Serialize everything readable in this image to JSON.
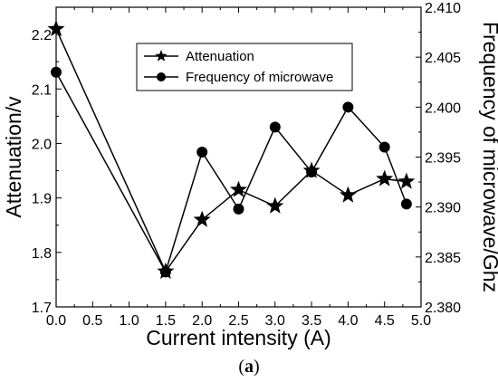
{
  "chart_data": {
    "type": "line",
    "xlabel": "Current intensity (A)",
    "ylabel_left": "Attenuation/v",
    "ylabel_right": "Frequency of microwave/Ghz",
    "xlim": [
      0.0,
      5.0
    ],
    "ylim_left": [
      1.7,
      2.25
    ],
    "ylim_right": [
      2.38,
      2.41
    ],
    "x_ticks": [
      "0.0",
      "0.5",
      "1.0",
      "1.5",
      "2.0",
      "2.5",
      "3.0",
      "3.5",
      "4.0",
      "4.5",
      "5.0"
    ],
    "y_left_ticks": [
      "1.7",
      "1.8",
      "1.9",
      "2.0",
      "2.1",
      "2.2"
    ],
    "y_right_ticks": [
      "2.380",
      "2.385",
      "2.390",
      "2.395",
      "2.400",
      "2.405",
      "2.410"
    ],
    "legend_position": "top-center",
    "grid": false,
    "series": [
      {
        "name": "Attenuation",
        "marker": "star",
        "axis": "left",
        "x": [
          0.0,
          1.5,
          2.0,
          2.5,
          3.0,
          3.5,
          4.0,
          4.5,
          4.8
        ],
        "y": [
          2.21,
          1.765,
          1.86,
          1.915,
          1.885,
          1.95,
          1.905,
          1.935,
          1.93
        ]
      },
      {
        "name": "Frequency of microwave",
        "marker": "circle",
        "axis": "right",
        "x": [
          0.0,
          1.5,
          2.0,
          2.5,
          3.0,
          3.5,
          4.0,
          4.5,
          4.8
        ],
        "y": [
          2.4035,
          2.3835,
          2.3955,
          2.3898,
          2.398,
          2.3935,
          2.4,
          2.396,
          2.3903
        ]
      }
    ]
  },
  "caption": {
    "open": "(",
    "letter": "a",
    "close": ")"
  }
}
